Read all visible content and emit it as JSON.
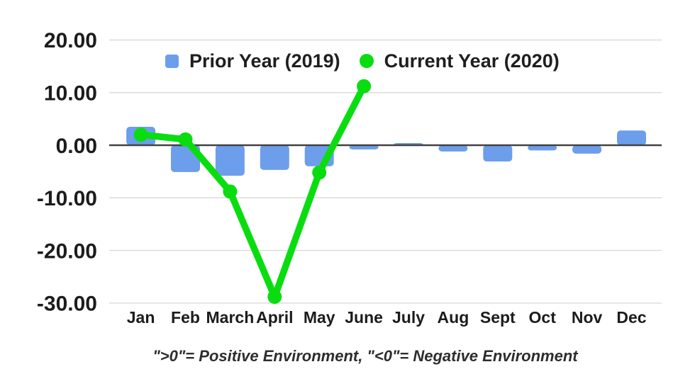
{
  "chart_data": {
    "type": "combo-bar-line",
    "categories": [
      "Jan",
      "Feb",
      "March",
      "April",
      "May",
      "June",
      "July",
      "Aug",
      "Sept",
      "Oct",
      "Nov",
      "Dec"
    ],
    "series": [
      {
        "name": "Prior Year (2019)",
        "type": "bar",
        "color": "#6d9eeb",
        "values": [
          3.5,
          -5.1,
          -5.8,
          -4.7,
          -4.0,
          -0.8,
          0.4,
          -1.2,
          -3.1,
          -1.0,
          -1.6,
          2.8
        ]
      },
      {
        "name": "Current Year (2020)",
        "type": "line",
        "color": "#09dd10",
        "values": [
          2.0,
          1.1,
          -8.8,
          -28.8,
          -5.2,
          11.2,
          null,
          null,
          null,
          null,
          null,
          null
        ]
      }
    ],
    "title": "",
    "xlabel": "",
    "ylabel": "",
    "ylim": [
      -30,
      20
    ],
    "yticks": {
      "values": [
        20,
        10,
        0,
        -10,
        -20,
        -30
      ],
      "labels": [
        "20.00",
        "10.00",
        "0.00",
        "-10.00",
        "-20.00",
        "-30.00"
      ]
    },
    "grid": true,
    "legend_position": "top",
    "caption": "\">0\"= Positive Environment, \"<0\"= Negative Environment",
    "colors": {
      "gridline": "#d9d9d9",
      "zero_axis": "#424242",
      "axis_text": "#1c1c1c"
    }
  }
}
